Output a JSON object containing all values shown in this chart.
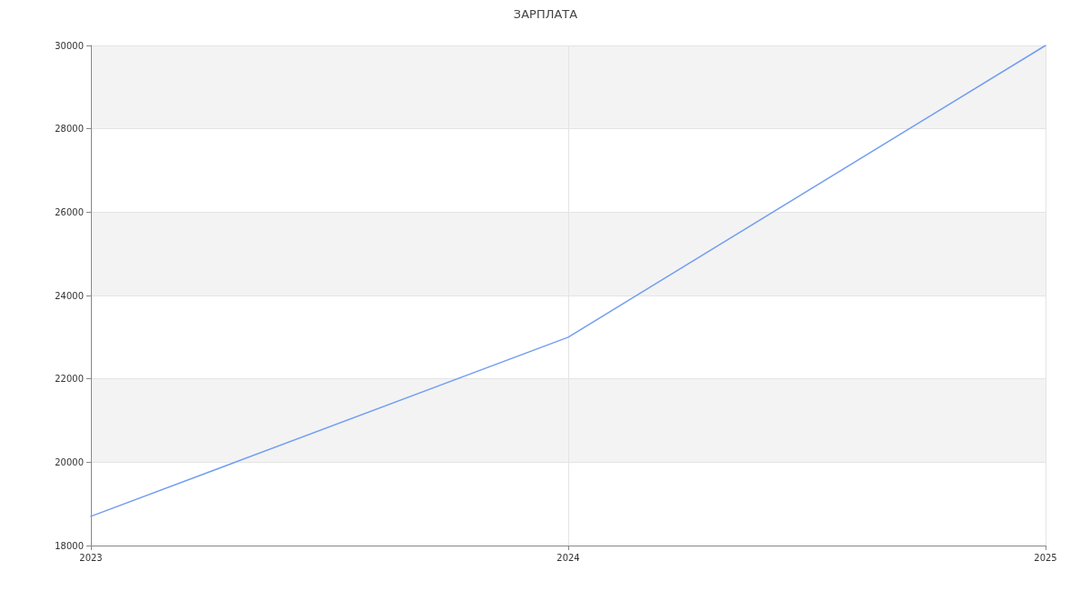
{
  "chart_data": {
    "type": "line",
    "title": "ЗАРПЛАТА",
    "x": [
      2023,
      2024,
      2025
    ],
    "series": [
      {
        "color": "#739ef0",
        "values": [
          18700,
          23000,
          30000
        ]
      }
    ],
    "xlim": [
      2023,
      2025
    ],
    "xticks": [
      2023,
      2024,
      2025
    ],
    "ylim": [
      18000,
      30000
    ],
    "yticks": [
      18000,
      20000,
      22000,
      24000,
      26000,
      28000,
      30000
    ],
    "grid": true,
    "marker": "none",
    "line_style": "solid"
  }
}
